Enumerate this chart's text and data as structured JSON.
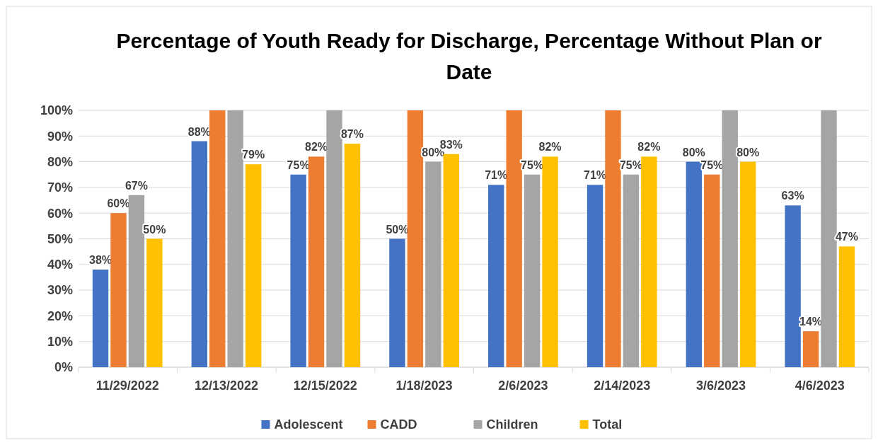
{
  "chart_data": {
    "type": "bar",
    "title": "Percentage of Youth Ready for Discharge, Percentage Without Plan or Date",
    "categories": [
      "11/29/2022",
      "12/13/2022",
      "12/15/2022",
      "1/18/2023",
      "2/6/2023",
      "2/14/2023",
      "3/6/2023",
      "4/6/2023"
    ],
    "series": [
      {
        "name": "Adolescent",
        "color": "#4472c4",
        "values": [
          38,
          88,
          75,
          50,
          71,
          71,
          80,
          63
        ],
        "value_labels": [
          "38%",
          "88%",
          "75%",
          "50%",
          "71%",
          "71%",
          "80%",
          "63%"
        ]
      },
      {
        "name": "CADD",
        "color": "#ed7d31",
        "values": [
          60,
          100,
          82,
          100,
          100,
          100,
          75,
          14
        ],
        "value_labels": [
          "60%",
          null,
          "82%",
          null,
          null,
          null,
          "75%",
          "14%"
        ]
      },
      {
        "name": "Children",
        "color": "#a5a5a5",
        "values": [
          67,
          100,
          100,
          80,
          75,
          75,
          100,
          100
        ],
        "value_labels": [
          "67%",
          null,
          null,
          "80%",
          "75%",
          "75%",
          null,
          null
        ]
      },
      {
        "name": "Total",
        "color": "#ffc000",
        "values": [
          50,
          79,
          87,
          83,
          82,
          82,
          80,
          47
        ],
        "value_labels": [
          "50%",
          "79%",
          "87%",
          "83%",
          "82%",
          "82%",
          "80%",
          "47%"
        ]
      }
    ],
    "ylim": [
      0,
      100
    ],
    "yticks": [
      {
        "value": 0,
        "label": "0%"
      },
      {
        "value": 10,
        "label": "10%"
      },
      {
        "value": 20,
        "label": "20%"
      },
      {
        "value": 30,
        "label": "30%"
      },
      {
        "value": 40,
        "label": "40%"
      },
      {
        "value": 50,
        "label": "50%"
      },
      {
        "value": 60,
        "label": "60%"
      },
      {
        "value": 70,
        "label": "70%"
      },
      {
        "value": 80,
        "label": "80%"
      },
      {
        "value": 90,
        "label": "90%"
      },
      {
        "value": 100,
        "label": "100%"
      }
    ],
    "grid": "y",
    "legend": "bottom"
  }
}
